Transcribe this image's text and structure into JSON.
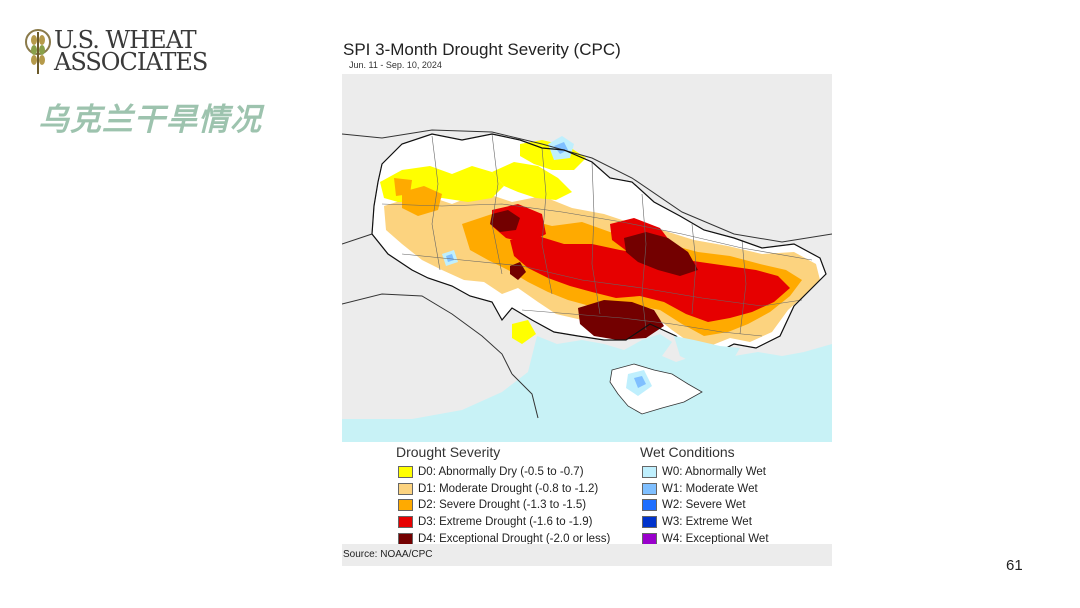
{
  "logo": {
    "line1": "U.S. WHEAT",
    "line2": "ASSOCIATES"
  },
  "slide_title": "乌克兰干旱情况",
  "page_number": "61",
  "map": {
    "title": "SPI 3-Month Drought Severity (CPC)",
    "date_range": "Jun. 11 - Sep. 10, 2024",
    "source": "Source: NOAA/CPC",
    "colors": {
      "sea": "#c8f2f6",
      "background": "#ececec",
      "no_data": "#ffffff",
      "D0": "#ffff00",
      "D1": "#fcd37f",
      "D2": "#ffaa00",
      "D3": "#e60000",
      "D4": "#730000",
      "W0": "#bfeffd",
      "W1": "#7fbfff",
      "W2": "#1e6fff",
      "W3": "#0033cc",
      "W4": "#9900cc"
    }
  },
  "legend": {
    "drought_heading": "Drought Severity",
    "wet_heading": "Wet Conditions",
    "drought_items": [
      {
        "code": "D0",
        "label": "D0: Abnormally Dry (-0.5 to -0.7)",
        "color": "#ffff00"
      },
      {
        "code": "D1",
        "label": "D1: Moderate Drought (-0.8 to -1.2)",
        "color": "#fcd37f"
      },
      {
        "code": "D2",
        "label": "D2: Severe Drought (-1.3 to -1.5)",
        "color": "#ffaa00"
      },
      {
        "code": "D3",
        "label": "D3: Extreme Drought (-1.6 to -1.9)",
        "color": "#e60000"
      },
      {
        "code": "D4",
        "label": "D4: Exceptional Drought (-2.0 or less)",
        "color": "#730000"
      }
    ],
    "wet_items": [
      {
        "code": "W0",
        "label": "W0: Abnormally Wet",
        "color": "#bfeffd"
      },
      {
        "code": "W1",
        "label": "W1: Moderate Wet",
        "color": "#7fbfff"
      },
      {
        "code": "W2",
        "label": "W2: Severe Wet",
        "color": "#1e6fff"
      },
      {
        "code": "W3",
        "label": "W3: Extreme Wet",
        "color": "#0033cc"
      },
      {
        "code": "W4",
        "label": "W4: Exceptional Wet",
        "color": "#9900cc"
      }
    ]
  }
}
